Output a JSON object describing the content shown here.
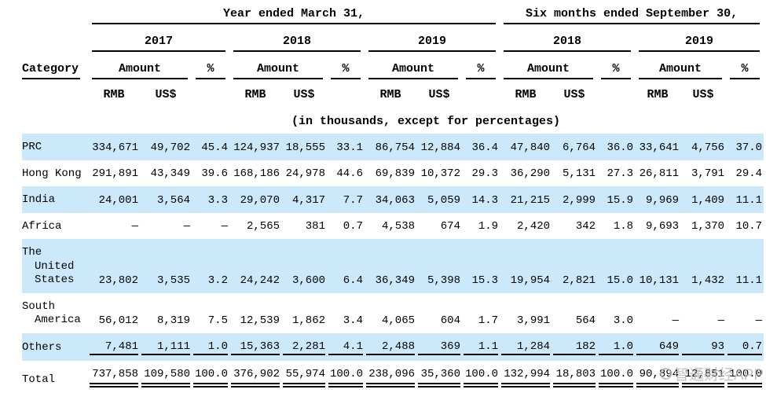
{
  "table": {
    "header": {
      "period_groups": [
        {
          "label": "Year ended March 31,",
          "years": [
            "2017",
            "2018",
            "2019"
          ]
        },
        {
          "label": "Six months ended September 30,",
          "years": [
            "2018",
            "2019"
          ]
        }
      ],
      "category_label": "Category",
      "amount_label": "Amount",
      "percent_label": "%",
      "currency_labels": [
        "RMB",
        "US$"
      ],
      "note": "(in thousands, except for percentages)"
    },
    "rows": [
      {
        "category": "PRC",
        "highlight": true,
        "values": [
          "334,671",
          "49,702",
          "45.4",
          "124,937",
          "18,555",
          "33.1",
          "86,754",
          "12,884",
          "36.4",
          "47,840",
          "6,764",
          "36.0",
          "33,641",
          "4,756",
          "37.0"
        ]
      },
      {
        "category": "Hong Kong",
        "highlight": false,
        "values": [
          "291,891",
          "43,349",
          "39.6",
          "168,186",
          "24,978",
          "44.6",
          "69,839",
          "10,372",
          "29.3",
          "36,290",
          "5,131",
          "27.3",
          "26,811",
          "3,791",
          "29.4"
        ]
      },
      {
        "category": "India",
        "highlight": true,
        "values": [
          "24,001",
          "3,564",
          "3.3",
          "29,070",
          "4,317",
          "7.7",
          "34,063",
          "5,059",
          "14.3",
          "21,215",
          "2,999",
          "15.9",
          "9,969",
          "1,409",
          "11.1"
        ]
      },
      {
        "category": "Africa",
        "highlight": false,
        "values": [
          "—",
          "—",
          "—",
          "2,565",
          "381",
          "0.7",
          "4,538",
          "674",
          "1.9",
          "2,420",
          "342",
          "1.8",
          "9,693",
          "1,370",
          "10.7"
        ]
      },
      {
        "category": "The United States",
        "highlight": true,
        "category_lines": [
          "The",
          "United",
          "States"
        ],
        "values": [
          "23,802",
          "3,535",
          "3.2",
          "24,242",
          "3,600",
          "6.4",
          "36,349",
          "5,398",
          "15.3",
          "19,954",
          "2,821",
          "15.0",
          "10,131",
          "1,432",
          "11.1"
        ]
      },
      {
        "category": "South America",
        "highlight": false,
        "category_lines": [
          "South",
          "America"
        ],
        "values": [
          "56,012",
          "8,319",
          "7.5",
          "12,539",
          "1,862",
          "3.4",
          "4,065",
          "604",
          "1.7",
          "3,991",
          "564",
          "3.0",
          "—",
          "—",
          "—"
        ]
      },
      {
        "category": "Others",
        "highlight": true,
        "underline": "single",
        "values": [
          "7,481",
          "1,111",
          "1.0",
          "15,363",
          "2,281",
          "4.1",
          "2,488",
          "369",
          "1.1",
          "1,284",
          "182",
          "1.0",
          "649",
          "93",
          "0.7"
        ]
      },
      {
        "category": "Total",
        "highlight": false,
        "underline": "double",
        "values": [
          "737,858",
          "109,580",
          "100.0",
          "376,902",
          "55,974",
          "100.0",
          "238,096",
          "35,360",
          "100.0",
          "132,994",
          "18,803",
          "100.0",
          "90,894",
          "12,851",
          "100.0"
        ]
      }
    ]
  },
  "colors": {
    "row_highlight": "#cce9fb",
    "rule": "#000000",
    "watermark": "#b3b3b3"
  },
  "watermark": {
    "text": "智通财经APP"
  }
}
